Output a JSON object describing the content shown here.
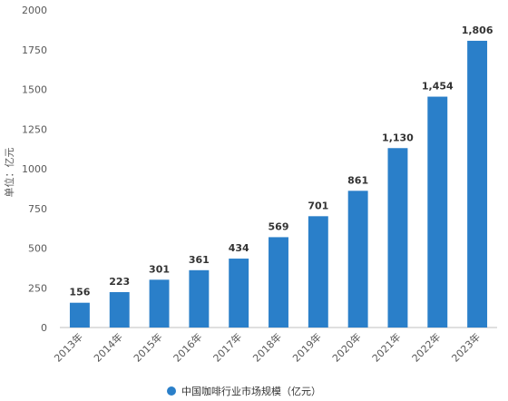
{
  "chart_data": {
    "type": "bar",
    "categories": [
      "2013年",
      "2014年",
      "2015年",
      "2016年",
      "2017年",
      "2018年",
      "2019年",
      "2020年",
      "2021年",
      "2022年",
      "2023年"
    ],
    "values": [
      156,
      223,
      301,
      361,
      434,
      569,
      701,
      861,
      1130,
      1454,
      1806
    ],
    "value_labels": [
      "156",
      "223",
      "301",
      "361",
      "434",
      "569",
      "701",
      "861",
      "1,130",
      "1,454",
      "1,806"
    ],
    "ylabel": "单位：亿元",
    "ylim": [
      0,
      2000
    ],
    "yticks": [
      0,
      250,
      500,
      750,
      1000,
      1250,
      1500,
      1750,
      2000
    ],
    "ytick_labels": [
      "0",
      "250",
      "500",
      "750",
      "1000",
      "1250",
      "1500",
      "1750",
      "2000"
    ],
    "series": [
      {
        "name": "中国咖啡行业市场规模（亿元）",
        "color": "#2a7fc9"
      }
    ],
    "legend_position": "bottom-center",
    "grid": false
  }
}
